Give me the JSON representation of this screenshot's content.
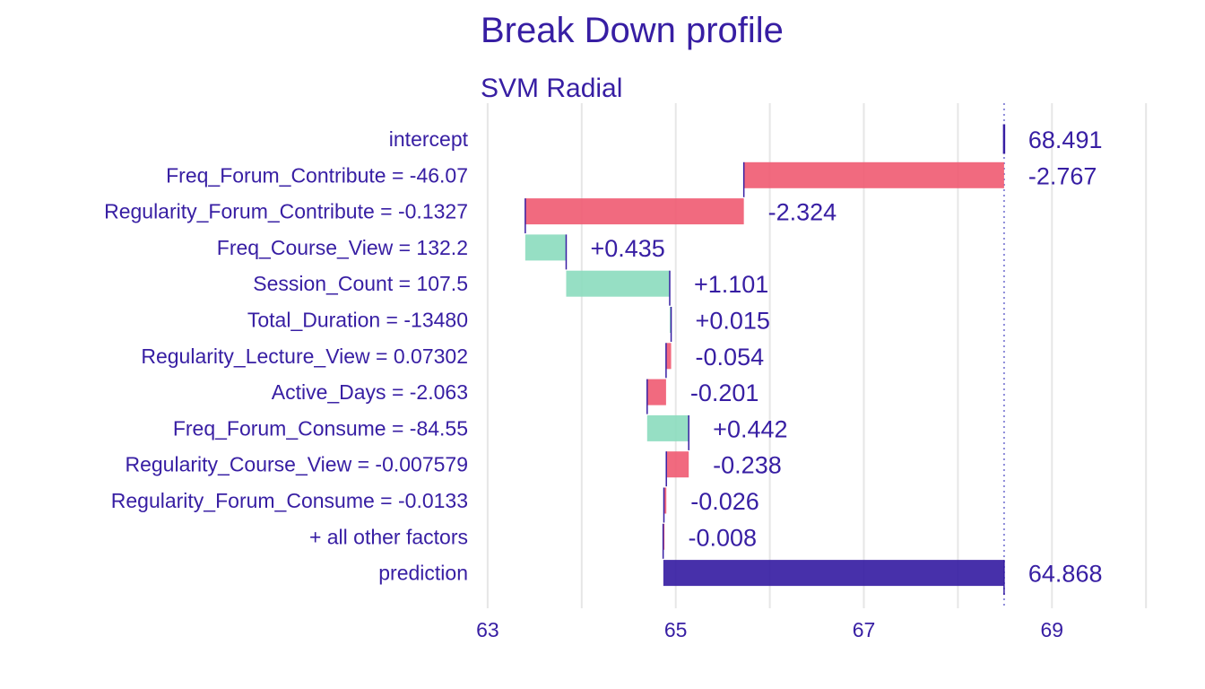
{
  "chart_data": {
    "type": "bar",
    "subtype": "break-down waterfall",
    "title": "Break Down profile",
    "subtitle": "SVM Radial",
    "xlabel": "",
    "ylabel": "",
    "xlim": [
      63,
      70
    ],
    "xticks": [
      63,
      65,
      67,
      69
    ],
    "xtick_labels": [
      "63",
      "65",
      "67",
      "69"
    ],
    "grid": "vertical",
    "reference_line": 68.491,
    "colors": {
      "text": "#371EA3",
      "negative": "#F05A71",
      "positive": "#8BDCBE",
      "prediction": "#371EA3",
      "grid": "#E6E6E6",
      "reference": "#8C8AD9"
    },
    "rows": [
      {
        "label": "intercept",
        "start": 68.491,
        "end": 68.491,
        "value_label": "68.491",
        "kind": "intercept"
      },
      {
        "label": "Freq_Forum_Contribute = -46.07",
        "start": 68.491,
        "end": 65.724,
        "value_label": "-2.767",
        "kind": "negative"
      },
      {
        "label": "Regularity_Forum_Contribute = -0.1327",
        "start": 65.724,
        "end": 63.4,
        "value_label": "-2.324",
        "kind": "negative"
      },
      {
        "label": "Freq_Course_View = 132.2",
        "start": 63.4,
        "end": 63.835,
        "value_label": "+0.435",
        "kind": "positive"
      },
      {
        "label": "Session_Count = 107.5",
        "start": 63.835,
        "end": 64.936,
        "value_label": "+1.101",
        "kind": "positive"
      },
      {
        "label": "Total_Duration = -13480",
        "start": 64.936,
        "end": 64.951,
        "value_label": "+0.015",
        "kind": "positive"
      },
      {
        "label": "Regularity_Lecture_View = 0.07302",
        "start": 64.951,
        "end": 64.897,
        "value_label": "-0.054",
        "kind": "negative"
      },
      {
        "label": "Active_Days = -2.063",
        "start": 64.897,
        "end": 64.696,
        "value_label": "-0.201",
        "kind": "negative"
      },
      {
        "label": "Freq_Forum_Consume = -84.55",
        "start": 64.696,
        "end": 65.138,
        "value_label": "+0.442",
        "kind": "positive"
      },
      {
        "label": "Regularity_Course_View = -0.007579",
        "start": 65.138,
        "end": 64.9,
        "value_label": "-0.238",
        "kind": "negative"
      },
      {
        "label": "Regularity_Forum_Consume = -0.0133",
        "start": 64.9,
        "end": 64.874,
        "value_label": "-0.026",
        "kind": "negative"
      },
      {
        "label": "+ all other factors",
        "start": 64.874,
        "end": 64.866,
        "value_label": "-0.008",
        "kind": "negative"
      },
      {
        "label": "prediction",
        "start": 64.868,
        "end": 68.491,
        "value_label": "64.868",
        "kind": "prediction"
      }
    ]
  }
}
